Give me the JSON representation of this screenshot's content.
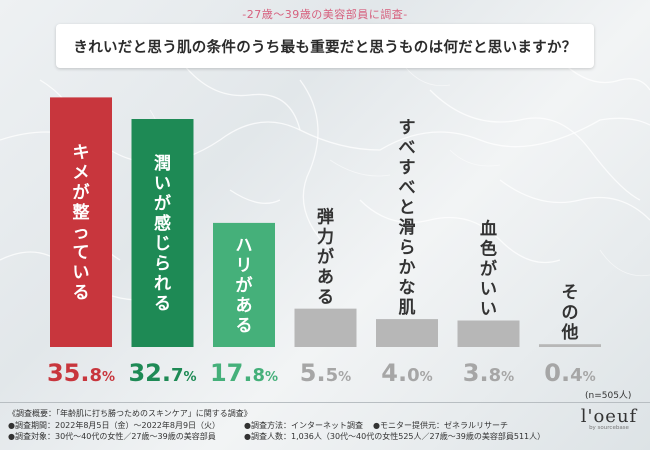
{
  "header": {
    "survey_tag": "-27歳～39歳の美容部員に調査-",
    "question": "きれいだと思う肌の条件のうち最も重要だと思うものは何だと思いますか？"
  },
  "chart_data": {
    "type": "bar",
    "categories": [
      "キメが整っている",
      "潤いが感じられる",
      "ハリがある",
      "弾力がある",
      "すべすべと滑らかな肌",
      "血色がいい",
      "その他"
    ],
    "values": [
      35.8,
      32.7,
      17.8,
      5.5,
      4.0,
      3.8,
      0.4
    ],
    "value_labels_int": [
      "35.",
      "32.",
      "17.",
      "5.",
      "4.",
      "3.",
      "0."
    ],
    "value_labels_dec": [
      "8",
      "7",
      "8",
      "5",
      "0",
      "8",
      "4"
    ],
    "unit": "%",
    "ylim": [
      0,
      36
    ],
    "grid": false,
    "legend": "none",
    "colors": [
      "#c8363d",
      "#1e8a55",
      "#45b07a",
      "#b7b7b7",
      "#b7b7b7",
      "#b7b7b7",
      "#b7b7b7"
    ],
    "label_colors": [
      "#ffffff",
      "#ffffff",
      "#ffffff",
      "#333333",
      "#333333",
      "#333333",
      "#333333"
    ],
    "pct_colors": [
      "#c8363d",
      "#1e8a55",
      "#45b07a",
      "#a6a6a6",
      "#a6a6a6",
      "#a6a6a6",
      "#a6a6a6"
    ]
  },
  "sample_size": "(n=505人)",
  "notes": {
    "overview": "《調査概要：「年齢肌に打ち勝つためのスキンケア」に関する調査》",
    "period": "●調査期間：2022年8月5日（金）～2022年8月9日（火）",
    "method": "●調査方法：インターネット調査",
    "monitor": "●モニター提供元：ゼネラルリサーチ",
    "target": "●調査対象：30代～40代の女性／27歳～39歳の美容部員",
    "count": "●調査人数：1,036人（30代～40代の女性525人／27歳～39歳の美容部員511人）"
  },
  "logo": {
    "word": "l'oeuf",
    "by": "by sourcebase"
  }
}
